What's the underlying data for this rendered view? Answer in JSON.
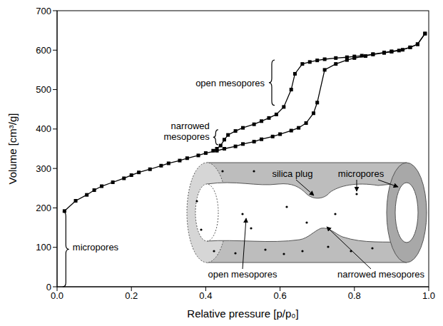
{
  "chart_data": {
    "type": "line",
    "x_label": "Relative pressure [p/p₀]",
    "y_label": "Volume [cm³/g]",
    "xlim": [
      0,
      1
    ],
    "ylim": [
      0,
      700
    ],
    "xticks": [
      {
        "value": 0,
        "label": "0.0"
      },
      0.2,
      0.4,
      0.6,
      0.8,
      {
        "value": 1,
        "label": "1.0"
      }
    ],
    "yticks": [
      0,
      100,
      200,
      300,
      400,
      500,
      600,
      700
    ],
    "grid": false,
    "series": [
      {
        "color": "#000000",
        "marker": "square",
        "line_style": "solid",
        "x": [
          0.02,
          0.05,
          0.08,
          0.1,
          0.12,
          0.15,
          0.18,
          0.2,
          0.22,
          0.25,
          0.28,
          0.3,
          0.33,
          0.35,
          0.38,
          0.4,
          0.43,
          0.45,
          0.48,
          0.5,
          0.53,
          0.55,
          0.58,
          0.6,
          0.63,
          0.65,
          0.67,
          0.69,
          0.7,
          0.72,
          0.75,
          0.78,
          0.8,
          0.83,
          0.85,
          0.88,
          0.9,
          0.93,
          0.95,
          0.97,
          0.99
        ],
        "values": [
          192,
          218,
          233,
          245,
          255,
          265,
          275,
          283,
          290,
          298,
          307,
          313,
          320,
          326,
          333,
          339,
          345,
          350,
          356,
          362,
          368,
          374,
          381,
          387,
          396,
          403,
          415,
          440,
          467,
          550,
          565,
          575,
          580,
          585,
          590,
          594,
          597,
          601,
          607,
          615,
          642
        ]
      },
      {
        "color": "#000000",
        "marker": "square",
        "line_style": "solid",
        "x": [
          0.99,
          0.97,
          0.95,
          0.92,
          0.9,
          0.88,
          0.85,
          0.82,
          0.8,
          0.78,
          0.75,
          0.72,
          0.7,
          0.68,
          0.66,
          0.64,
          0.63,
          0.61,
          0.59,
          0.57,
          0.55,
          0.53,
          0.5,
          0.48,
          0.46,
          0.45,
          0.44,
          0.43,
          0.42
        ],
        "values": [
          642,
          615,
          607,
          599,
          596,
          593,
          589,
          586,
          584,
          582,
          580,
          577,
          574,
          570,
          565,
          540,
          500,
          456,
          437,
          428,
          420,
          412,
          403,
          395,
          385,
          373,
          358,
          350,
          345
        ]
      }
    ],
    "annotations": [
      "open mesopores",
      "narrowed mesopores",
      "micropores"
    ],
    "inset": {
      "labels": [
        "silica plug",
        "micropores",
        "open mesopores",
        "narrowed mesopores"
      ]
    }
  }
}
